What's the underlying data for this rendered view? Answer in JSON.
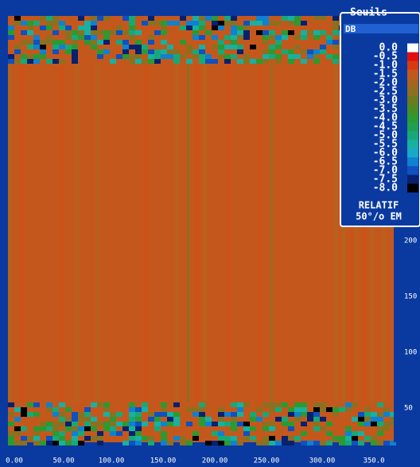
{
  "legend": {
    "title": "Seuils",
    "unit": "DB",
    "items": [
      {
        "label": "0.0",
        "color": "#ffffff"
      },
      {
        "label": "-0.5",
        "color": "#e01010"
      },
      {
        "label": "-1.0",
        "color": "#d83a10"
      },
      {
        "label": "-1.5",
        "color": "#c4581c"
      },
      {
        "label": "-2.0",
        "color": "#a8641c"
      },
      {
        "label": "-2.5",
        "color": "#8c7020"
      },
      {
        "label": "-3.0",
        "color": "#6c7a20"
      },
      {
        "label": "-3.5",
        "color": "#4c8a24"
      },
      {
        "label": "-4.0",
        "color": "#2c9a30"
      },
      {
        "label": "-4.5",
        "color": "#20a050"
      },
      {
        "label": "-5.0",
        "color": "#18a878"
      },
      {
        "label": "-5.5",
        "color": "#18b0a0"
      },
      {
        "label": "-6.0",
        "color": "#18a8c8"
      },
      {
        "label": "-6.5",
        "color": "#1080d0"
      },
      {
        "label": "-7.0",
        "color": "#1050c0"
      },
      {
        "label": "-7.5",
        "color": "#082070"
      },
      {
        "label": "-8.0",
        "color": "#000000"
      }
    ],
    "mode": "RELATIF",
    "note": "50°/o EM"
  },
  "y_axis": {
    "labels": [
      "200",
      "150",
      "100",
      "50"
    ]
  },
  "x_axis": {
    "labels": [
      "0.00",
      "50.00",
      "100.00",
      "150.00",
      "200.00",
      "250.00",
      "300.00",
      "350.0"
    ]
  }
}
